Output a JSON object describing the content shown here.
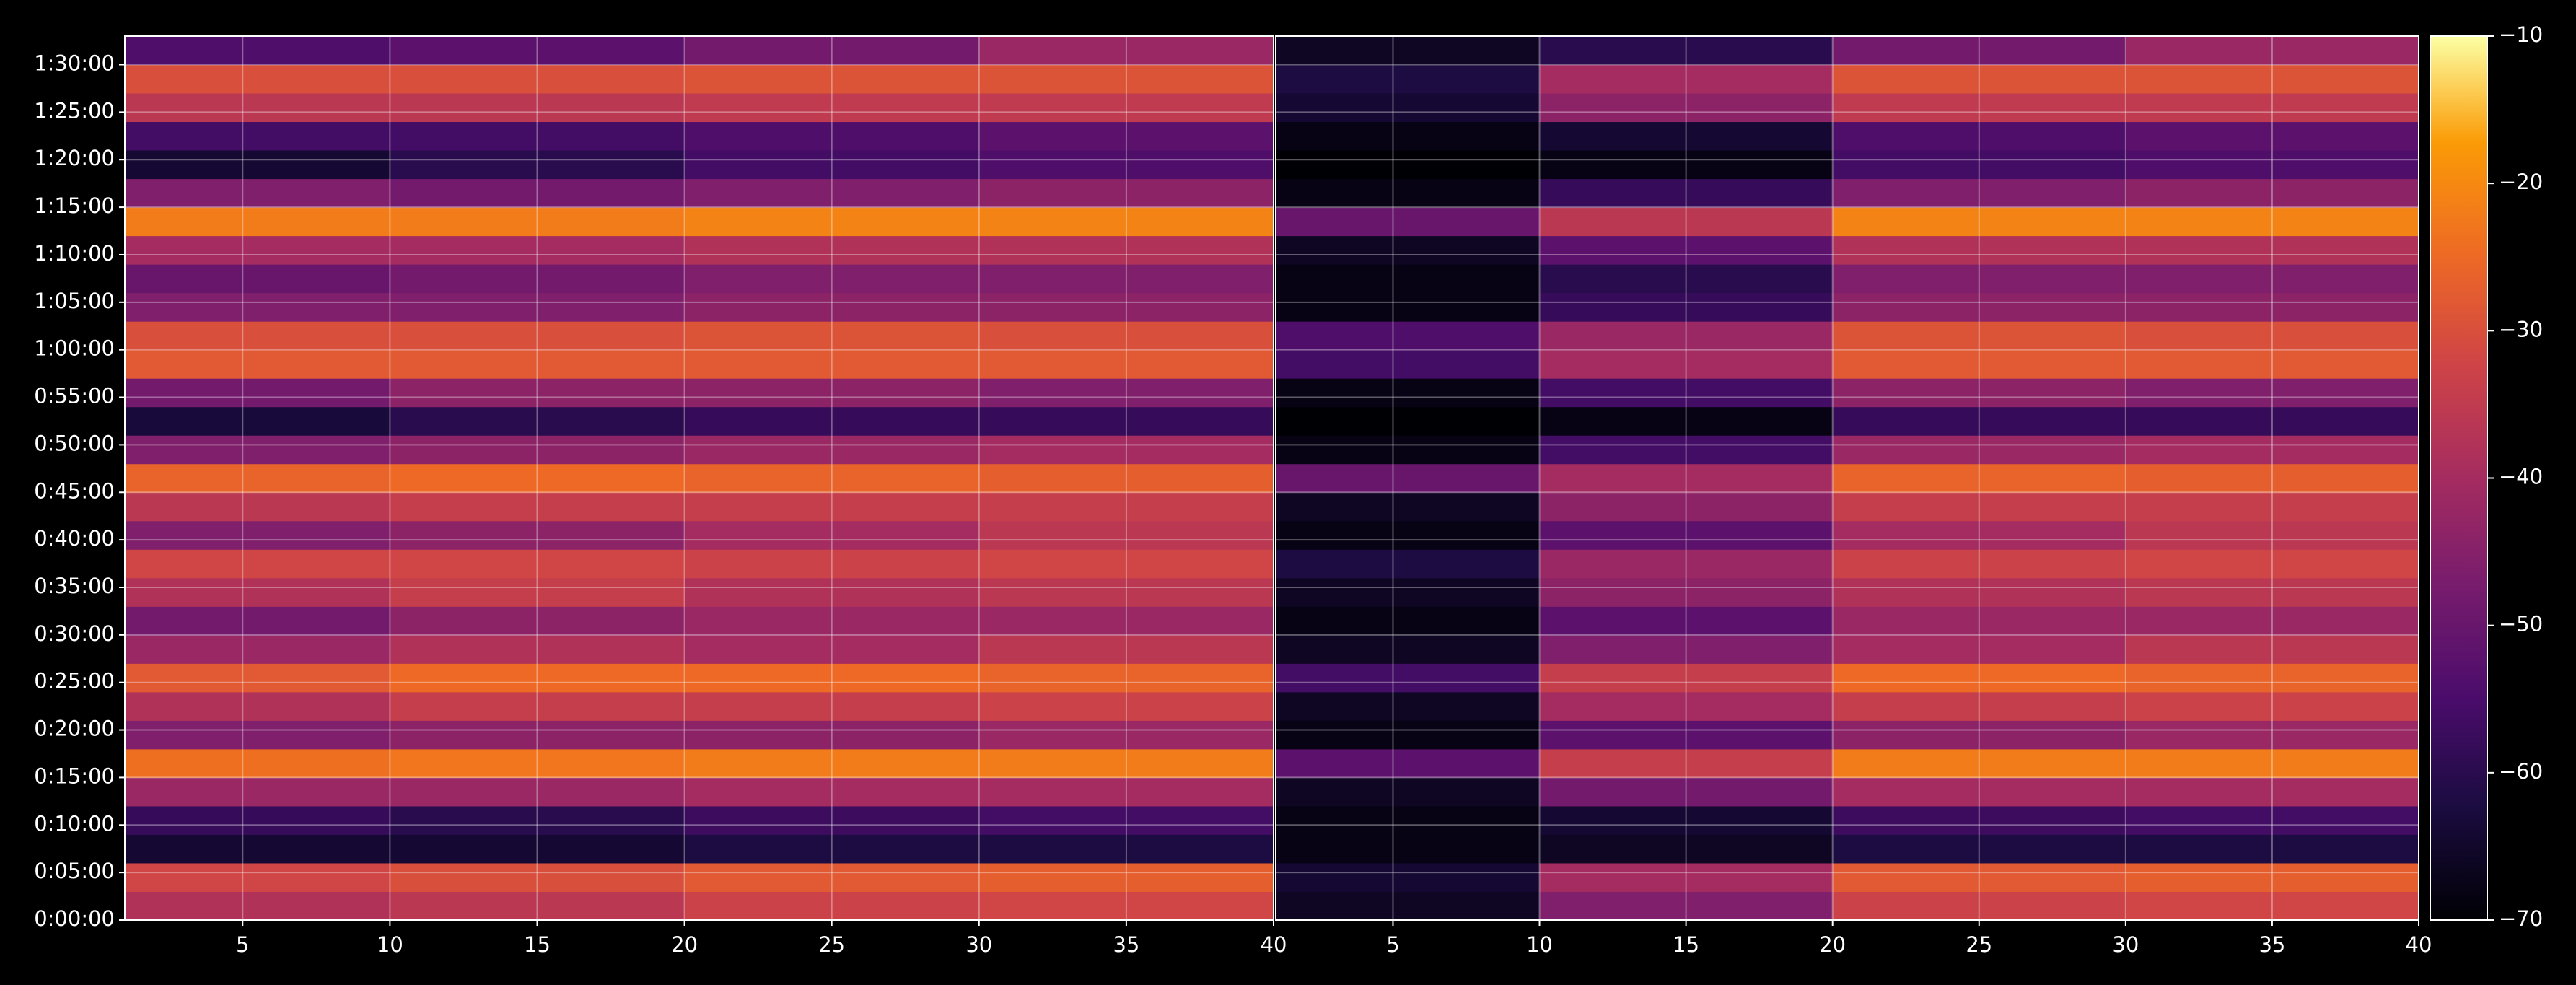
{
  "chart_data": [
    {
      "type": "heatmap",
      "xlim": [
        1,
        40
      ],
      "xticks": [
        5,
        10,
        15,
        20,
        25,
        30,
        35,
        40
      ],
      "ylim": [
        0,
        5580
      ],
      "yticks": [
        {
          "value": 0,
          "label": "0:00:00"
        },
        {
          "value": 300,
          "label": "0:05:00"
        },
        {
          "value": 600,
          "label": "0:10:00"
        },
        {
          "value": 900,
          "label": "0:15:00"
        },
        {
          "value": 1200,
          "label": "0:20:00"
        },
        {
          "value": 1500,
          "label": "0:25:00"
        },
        {
          "value": 1800,
          "label": "0:30:00"
        },
        {
          "value": 2100,
          "label": "0:35:00"
        },
        {
          "value": 2400,
          "label": "0:40:00"
        },
        {
          "value": 2700,
          "label": "0:45:00"
        },
        {
          "value": 3000,
          "label": "0:50:00"
        },
        {
          "value": 3300,
          "label": "0:55:00"
        },
        {
          "value": 3600,
          "label": "1:00:00"
        },
        {
          "value": 3900,
          "label": "1:05:00"
        },
        {
          "value": 4200,
          "label": "1:10:00"
        },
        {
          "value": 4500,
          "label": "1:15:00"
        },
        {
          "value": 4800,
          "label": "1:20:00"
        },
        {
          "value": 5100,
          "label": "1:25:00"
        },
        {
          "value": 5400,
          "label": "1:30:00"
        }
      ],
      "grid": true,
      "xbins": [
        1,
        10,
        20,
        30,
        40
      ],
      "ybins": [
        0,
        180,
        360,
        540,
        720,
        900,
        1080,
        1260,
        1440,
        1620,
        1800,
        1980,
        2160,
        2340,
        2520,
        2700,
        2880,
        3060,
        3240,
        3420,
        3600,
        3780,
        3960,
        4140,
        4320,
        4500,
        4680,
        4860,
        5040,
        5220,
        5400,
        5580
      ],
      "z": [
        [
          -38,
          -36,
          -33,
          -32
        ],
        [
          -32,
          -30,
          -28,
          -27
        ],
        [
          -64,
          -64,
          -62,
          -62
        ],
        [
          -58,
          -60,
          -57,
          -56
        ],
        [
          -42,
          -42,
          -40,
          -40
        ],
        [
          -24,
          -23,
          -22,
          -22
        ],
        [
          -46,
          -44,
          -44,
          -42
        ],
        [
          -38,
          -34,
          -34,
          -33
        ],
        [
          -28,
          -25,
          -25,
          -26
        ],
        [
          -42,
          -38,
          -40,
          -36
        ],
        [
          -48,
          -44,
          -42,
          -42
        ],
        [
          -38,
          -34,
          -38,
          -36
        ],
        [
          -32,
          -32,
          -33,
          -32
        ],
        [
          -46,
          -44,
          -40,
          -36
        ],
        [
          -36,
          -34,
          -34,
          -34
        ],
        [
          -26,
          -25,
          -26,
          -27
        ],
        [
          -46,
          -44,
          -42,
          -40
        ],
        [
          -63,
          -60,
          -58,
          -58
        ],
        [
          -48,
          -44,
          -44,
          -46
        ],
        [
          -28,
          -28,
          -28,
          -28
        ],
        [
          -30,
          -30,
          -29,
          -30
        ],
        [
          -46,
          -46,
          -44,
          -44
        ],
        [
          -50,
          -48,
          -46,
          -46
        ],
        [
          -40,
          -40,
          -38,
          -38
        ],
        [
          -22,
          -22,
          -21,
          -21
        ],
        [
          -46,
          -48,
          -46,
          -44
        ],
        [
          -64,
          -60,
          -56,
          -54
        ],
        [
          -56,
          -56,
          -54,
          -52
        ],
        [
          -36,
          -36,
          -35,
          -35
        ],
        [
          -30,
          -30,
          -29,
          -29
        ],
        [
          -54,
          -52,
          -48,
          -42
        ]
      ]
    },
    {
      "type": "heatmap",
      "xlim": [
        1,
        40
      ],
      "xticks": [
        5,
        10,
        15,
        20,
        25,
        30,
        35,
        40
      ],
      "ylim": [
        0,
        5580
      ],
      "grid": true,
      "xbins": [
        1,
        10,
        20,
        30,
        40
      ],
      "ybins": [
        0,
        180,
        360,
        540,
        720,
        900,
        1080,
        1260,
        1440,
        1620,
        1800,
        1980,
        2160,
        2340,
        2520,
        2700,
        2880,
        3060,
        3240,
        3420,
        3600,
        3780,
        3960,
        4140,
        4320,
        4500,
        4680,
        4860,
        5040,
        5220,
        5400,
        5580
      ],
      "z": [
        [
          -66,
          -46,
          -33,
          -32
        ],
        [
          -64,
          -40,
          -28,
          -27
        ],
        [
          -68,
          -66,
          -62,
          -62
        ],
        [
          -68,
          -64,
          -57,
          -56
        ],
        [
          -66,
          -48,
          -40,
          -40
        ],
        [
          -52,
          -34,
          -22,
          -22
        ],
        [
          -68,
          -52,
          -44,
          -42
        ],
        [
          -66,
          -40,
          -34,
          -33
        ],
        [
          -56,
          -34,
          -25,
          -26
        ],
        [
          -66,
          -46,
          -40,
          -36
        ],
        [
          -68,
          -52,
          -42,
          -42
        ],
        [
          -66,
          -44,
          -38,
          -36
        ],
        [
          -62,
          -42,
          -33,
          -32
        ],
        [
          -68,
          -52,
          -40,
          -36
        ],
        [
          -66,
          -44,
          -34,
          -34
        ],
        [
          -50,
          -40,
          -26,
          -27
        ],
        [
          -68,
          -56,
          -42,
          -40
        ],
        [
          -70,
          -68,
          -58,
          -58
        ],
        [
          -68,
          -56,
          -44,
          -46
        ],
        [
          -56,
          -40,
          -28,
          -28
        ],
        [
          -54,
          -42,
          -29,
          -30
        ],
        [
          -68,
          -58,
          -44,
          -44
        ],
        [
          -68,
          -60,
          -46,
          -46
        ],
        [
          -66,
          -52,
          -38,
          -38
        ],
        [
          -50,
          -36,
          -21,
          -21
        ],
        [
          -68,
          -58,
          -46,
          -44
        ],
        [
          -70,
          -68,
          -56,
          -54
        ],
        [
          -68,
          -64,
          -54,
          -52
        ],
        [
          -64,
          -44,
          -35,
          -35
        ],
        [
          -62,
          -40,
          -29,
          -29
        ],
        [
          -66,
          -60,
          -48,
          -42
        ]
      ],
      "colorbar": {
        "lim": [
          -70,
          -10
        ],
        "ticks": [
          {
            "value": -70,
            "label": "−70"
          },
          {
            "value": -60,
            "label": "−60"
          },
          {
            "value": -50,
            "label": "−50"
          },
          {
            "value": -40,
            "label": "−40"
          },
          {
            "value": -30,
            "label": "−30"
          },
          {
            "value": -20,
            "label": "−20"
          },
          {
            "value": -10,
            "label": "−10"
          }
        ]
      }
    }
  ]
}
